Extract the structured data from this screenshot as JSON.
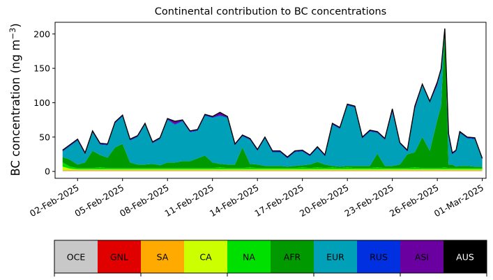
{
  "chart_data": {
    "type": "area",
    "title": "Continental contribution to BC concentrations",
    "ylabel": "BC concentration (ng m⁻³)",
    "xlabel": "",
    "x_start": "2025-02-01",
    "x_end": "2025-03-01",
    "xlim": [
      "2025-01-31T12:00",
      "2025-03-01T06:00"
    ],
    "ylim": [
      -10,
      217
    ],
    "grid": false,
    "xticks": [
      "02-Feb-2025",
      "05-Feb-2025",
      "08-Feb-2025",
      "11-Feb-2025",
      "14-Feb-2025",
      "17-Feb-2025",
      "20-Feb-2025",
      "23-Feb-2025",
      "26-Feb-2025",
      "01-Mar-2025"
    ],
    "yticks": [
      0,
      50,
      100,
      150,
      200
    ],
    "x": [
      "2025-02-01",
      "2025-02-01T12:00",
      "2025-02-02",
      "2025-02-02T12:00",
      "2025-02-03",
      "2025-02-03T12:00",
      "2025-02-04",
      "2025-02-04T12:00",
      "2025-02-05",
      "2025-02-05T12:00",
      "2025-02-06",
      "2025-02-06T12:00",
      "2025-02-07",
      "2025-02-07T12:00",
      "2025-02-08",
      "2025-02-08T12:00",
      "2025-02-09",
      "2025-02-09T12:00",
      "2025-02-10",
      "2025-02-10T12:00",
      "2025-02-11",
      "2025-02-11T12:00",
      "2025-02-12",
      "2025-02-12T12:00",
      "2025-02-13",
      "2025-02-13T12:00",
      "2025-02-14",
      "2025-02-14T12:00",
      "2025-02-15",
      "2025-02-15T12:00",
      "2025-02-16",
      "2025-02-16T12:00",
      "2025-02-17",
      "2025-02-17T12:00",
      "2025-02-18",
      "2025-02-18T12:00",
      "2025-02-19",
      "2025-02-19T12:00",
      "2025-02-20",
      "2025-02-20T12:00",
      "2025-02-21",
      "2025-02-21T12:00",
      "2025-02-22",
      "2025-02-22T12:00",
      "2025-02-23",
      "2025-02-23T12:00",
      "2025-02-24",
      "2025-02-24T12:00",
      "2025-02-25",
      "2025-02-25T12:00",
      "2025-02-26",
      "2025-02-26T06:00",
      "2025-02-26T12:00",
      "2025-02-26T18:00",
      "2025-02-27",
      "2025-02-27T06:00",
      "2025-02-27T12:00",
      "2025-02-28",
      "2025-02-28T12:00",
      "2025-03-01"
    ],
    "series": [
      {
        "name": "OCE",
        "color": "#c8c8c8",
        "values": [
          1,
          1,
          1,
          1,
          1,
          1,
          1,
          1,
          1,
          1,
          1,
          1,
          1,
          1,
          1,
          1,
          1,
          1,
          1,
          1,
          1,
          1,
          1,
          1,
          1,
          1,
          1,
          1,
          1,
          1,
          1,
          1,
          1,
          1,
          1,
          1,
          1,
          1,
          1,
          1,
          1,
          1,
          1,
          1,
          1,
          1,
          1,
          1,
          1,
          1,
          1,
          1,
          1,
          1,
          1,
          1,
          1,
          1,
          1,
          1
        ]
      },
      {
        "name": "GNL",
        "color": "#e00000",
        "values": [
          0,
          0,
          0,
          0,
          0,
          0,
          0,
          0,
          0,
          0,
          0,
          0,
          0,
          0,
          0,
          0,
          0,
          0,
          0,
          0,
          0,
          0,
          0,
          0,
          0,
          0,
          0,
          0,
          0,
          0,
          0,
          0,
          0,
          0,
          0,
          0,
          0,
          0,
          0,
          0,
          0,
          0,
          0,
          0,
          0,
          0,
          0,
          0,
          0,
          0,
          0,
          0,
          0,
          0,
          0,
          0,
          0,
          0,
          0,
          0
        ]
      },
      {
        "name": "SA",
        "color": "#ffaa00",
        "values": [
          1,
          1,
          1,
          1,
          1,
          1,
          1,
          1,
          1,
          1,
          1,
          1,
          1,
          1,
          1,
          1,
          1,
          1,
          1,
          1,
          1,
          1,
          1,
          1,
          1,
          1,
          1,
          1,
          1,
          1,
          1,
          1,
          1,
          1,
          1,
          1,
          1,
          1,
          1,
          1,
          1,
          1,
          1,
          1,
          1,
          1,
          1,
          1,
          1,
          1,
          1,
          1,
          1,
          1,
          1,
          1,
          1,
          1,
          1,
          1
        ]
      },
      {
        "name": "CA",
        "color": "#ccff00",
        "values": [
          5,
          2,
          1,
          1,
          1,
          1,
          1,
          1,
          1,
          1,
          1,
          1,
          1,
          1,
          1,
          1,
          1,
          1,
          1,
          1,
          1,
          1,
          1,
          1,
          1,
          1,
          1,
          1,
          1,
          1,
          1,
          1,
          1,
          1,
          1,
          1,
          1,
          1,
          1,
          1,
          1,
          1,
          1,
          1,
          1,
          1,
          1,
          1,
          1,
          1,
          1,
          1,
          1,
          1,
          1,
          1,
          1,
          1,
          1,
          1
        ]
      },
      {
        "name": "NA",
        "color": "#00e000",
        "values": [
          6,
          3,
          2,
          2,
          2,
          3,
          2,
          2,
          2,
          2,
          2,
          2,
          2,
          2,
          2,
          2,
          2,
          2,
          2,
          2,
          2,
          3,
          2,
          2,
          2,
          3,
          2,
          2,
          2,
          2,
          2,
          2,
          3,
          2,
          3,
          2,
          3,
          2,
          3,
          2,
          2,
          2,
          3,
          2,
          2,
          2,
          2,
          3,
          2,
          2,
          2,
          2,
          3,
          2,
          2,
          2,
          2,
          2,
          2,
          2
        ]
      },
      {
        "name": "AFR",
        "color": "#009a00",
        "values": [
          8,
          10,
          5,
          8,
          25,
          18,
          15,
          30,
          35,
          8,
          5,
          5,
          6,
          4,
          8,
          8,
          10,
          10,
          14,
          18,
          8,
          5,
          5,
          5,
          30,
          5,
          5,
          3,
          3,
          3,
          2,
          3,
          3,
          5,
          8,
          5,
          2,
          2,
          2,
          3,
          3,
          3,
          20,
          3,
          3,
          5,
          20,
          22,
          45,
          25,
          70,
          90,
          200,
          5,
          5,
          2,
          3,
          3,
          2,
          2
        ]
      },
      {
        "name": "EUR",
        "color": "#00a0b8",
        "values": [
          8,
          20,
          35,
          12,
          27,
          15,
          18,
          35,
          40,
          32,
          40,
          58,
          30,
          38,
          62,
          55,
          58,
          42,
          40,
          58,
          65,
          70,
          68,
          28,
          16,
          35,
          20,
          40,
          20,
          20,
          12,
          20,
          20,
          12,
          20,
          12,
          60,
          55,
          88,
          85,
          40,
          50,
          30,
          38,
          78,
          30,
          4,
          62,
          75,
          70,
          50,
          52,
          0,
          40,
          15,
          22,
          48,
          40,
          40,
          10
        ]
      },
      {
        "name": "RUS",
        "color": "#0030e0",
        "values": [
          1,
          1,
          1,
          1,
          1,
          1,
          1,
          1,
          1,
          1,
          1,
          1,
          1,
          1,
          1,
          1,
          1,
          1,
          1,
          1,
          1,
          1,
          1,
          1,
          1,
          1,
          1,
          1,
          1,
          1,
          1,
          1,
          1,
          1,
          1,
          1,
          1,
          1,
          1,
          1,
          1,
          1,
          1,
          1,
          1,
          1,
          1,
          1,
          1,
          1,
          1,
          1,
          1,
          1,
          1,
          1,
          1,
          1,
          1,
          1
        ]
      },
      {
        "name": "ASI",
        "color": "#6a00a0",
        "values": [
          1,
          1,
          1,
          1,
          1,
          1,
          1,
          1,
          1,
          1,
          1,
          1,
          1,
          1,
          1,
          4,
          1,
          1,
          1,
          1,
          1,
          4,
          1,
          1,
          1,
          1,
          1,
          1,
          1,
          1,
          1,
          1,
          1,
          1,
          1,
          1,
          1,
          1,
          1,
          1,
          1,
          1,
          1,
          1,
          4,
          1,
          1,
          4,
          1,
          1,
          4,
          1,
          1,
          4,
          1,
          1,
          1,
          1,
          1,
          1
        ]
      },
      {
        "name": "AUS",
        "color": "#000000",
        "values": [
          0,
          0,
          0,
          0,
          0,
          0,
          0,
          0,
          0,
          0,
          0,
          0,
          0,
          0,
          0,
          0,
          0,
          0,
          0,
          0,
          0,
          0,
          0,
          0,
          0,
          0,
          0,
          0,
          0,
          0,
          0,
          0,
          0,
          0,
          0,
          0,
          0,
          0,
          0,
          0,
          0,
          0,
          0,
          0,
          0,
          0,
          0,
          0,
          0,
          0,
          0,
          0,
          0,
          0,
          0,
          0,
          0,
          0,
          0,
          0
        ]
      }
    ],
    "legend_position": "bottom",
    "colorbar_labels": [
      "OCE",
      "GNL",
      "SA",
      "CA",
      "NA",
      "AFR",
      "EUR",
      "RUS",
      "ASI",
      "AUS"
    ],
    "colorbar_colors": [
      "#c8c8c8",
      "#e00000",
      "#ffaa00",
      "#ccff00",
      "#00e000",
      "#009a00",
      "#00a0b8",
      "#0030e0",
      "#6a00a0",
      "#000000"
    ],
    "colorbar_label_colors": [
      "#000000",
      "#000000",
      "#000000",
      "#000000",
      "#000000",
      "#000000",
      "#000000",
      "#000000",
      "#000000",
      "#ffffff"
    ]
  }
}
